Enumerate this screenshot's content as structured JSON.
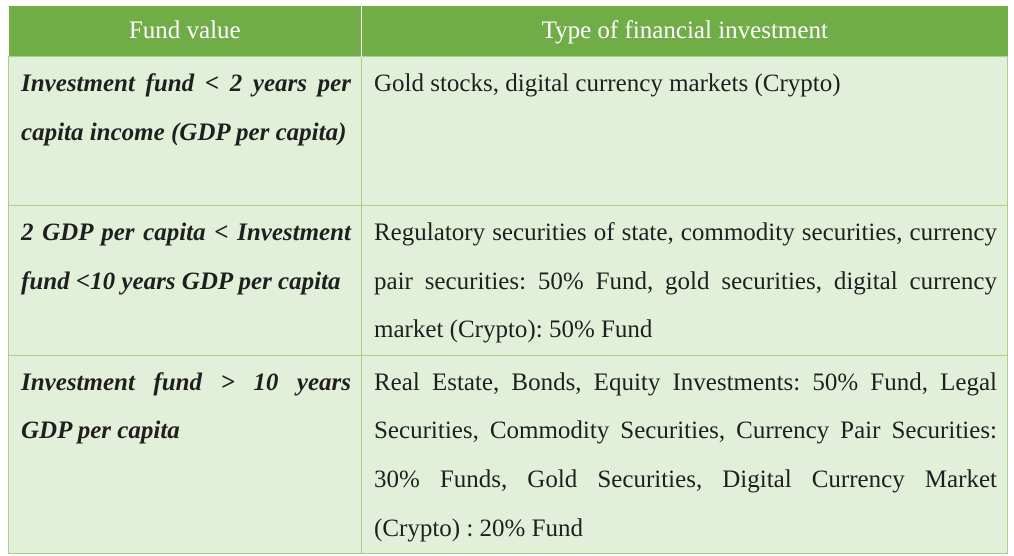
{
  "table": {
    "headers": [
      "Fund value",
      "Type of financial investment"
    ],
    "rows": [
      {
        "fund_value": "Investment fund < 2 years per capita income (GDP per capita)",
        "investment_type": "Gold stocks, digital currency markets (Crypto)"
      },
      {
        "fund_value": "2 GDP per capita < Investment fund <10 years GDP per capita",
        "investment_type": "Regulatory securities of state, commodity securities, currency pair securities: 50% Fund, gold securities, digital currency market (Crypto): 50% Fund"
      },
      {
        "fund_value": "Investment fund > 10 years GDP per capita",
        "investment_type": "Real Estate, Bonds, Equity Investments: 50% Fund, Legal Securities, Commodity Securities, Currency Pair Securities: 30% Funds, Gold Securities, Digital Currency Market (Crypto) : 20% Fund"
      }
    ]
  },
  "colors": {
    "header_background": "#70ad47",
    "header_text": "#ffffff",
    "row_background": "#e2efd9",
    "border": "#a9d18e"
  }
}
